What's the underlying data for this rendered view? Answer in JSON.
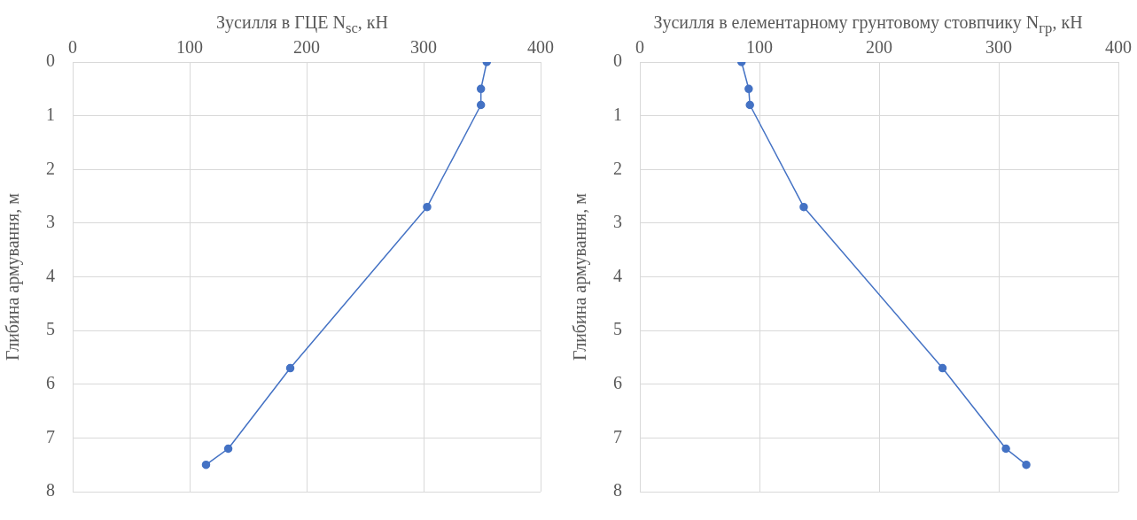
{
  "chart_data": [
    {
      "type": "line",
      "xlabel": "Зусилля в ГЦЕ N$_{sc}$, кН",
      "ylabel": "Глибина армування, м",
      "xlim": [
        0,
        400
      ],
      "xticks": [
        0,
        100,
        200,
        300,
        400
      ],
      "ylim": [
        8,
        0
      ],
      "yticks": [
        0,
        1,
        2,
        3,
        4,
        5,
        6,
        7,
        8
      ],
      "grid": true,
      "legend": false,
      "marker": "circle",
      "line_style": "solid",
      "series": [
        {
          "color": "#4472c4",
          "x": [
            354,
            349,
            349,
            303,
            186,
            133,
            114
          ],
          "values": [
            0,
            0.5,
            0.8,
            2.7,
            5.7,
            7.2,
            7.5
          ]
        }
      ]
    },
    {
      "type": "line",
      "xlabel": "Зусилля в елементарному грунтовому стовпчику N$_{гр}$, кН",
      "ylabel": "Глибина армування, м",
      "xlim": [
        0,
        400
      ],
      "xticks": [
        0,
        100,
        200,
        300,
        400
      ],
      "ylim": [
        8,
        0
      ],
      "yticks": [
        0,
        1,
        2,
        3,
        4,
        5,
        6,
        7,
        8
      ],
      "grid": true,
      "legend": false,
      "marker": "circle",
      "line_style": "solid",
      "series": [
        {
          "color": "#4472c4",
          "x": [
            85,
            91,
            92,
            137,
            253,
            306,
            323
          ],
          "values": [
            0,
            0.5,
            0.8,
            2.7,
            5.7,
            7.2,
            7.5
          ]
        }
      ]
    }
  ]
}
